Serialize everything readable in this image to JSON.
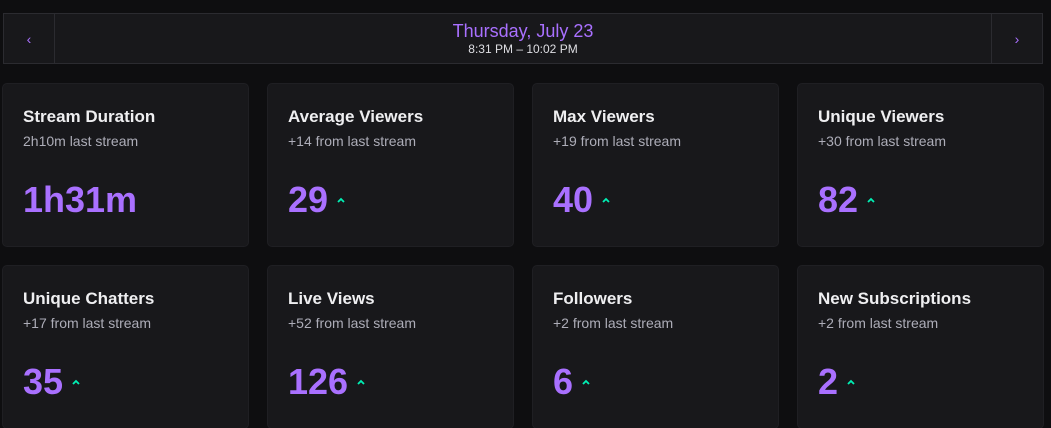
{
  "header": {
    "date": "Thursday, July 23",
    "time_range": "8:31 PM – 10:02 PM",
    "prev_glyph": "‹",
    "next_glyph": "›"
  },
  "colors": {
    "accent": "#a970ff",
    "trend_up": "#00f0b5",
    "background": "#0e0e10",
    "card": "#18181b"
  },
  "stats": [
    {
      "title": "Stream Duration",
      "subtitle": "2h10m last stream",
      "value": "1h31m",
      "trend": "none"
    },
    {
      "title": "Average Viewers",
      "subtitle": "+14 from last stream",
      "value": "29",
      "trend": "up"
    },
    {
      "title": "Max Viewers",
      "subtitle": "+19 from last stream",
      "value": "40",
      "trend": "up"
    },
    {
      "title": "Unique Viewers",
      "subtitle": "+30 from last stream",
      "value": "82",
      "trend": "up"
    },
    {
      "title": "Unique Chatters",
      "subtitle": "+17 from last stream",
      "value": "35",
      "trend": "up"
    },
    {
      "title": "Live Views",
      "subtitle": "+52 from last stream",
      "value": "126",
      "trend": "up"
    },
    {
      "title": "Followers",
      "subtitle": "+2 from last stream",
      "value": "6",
      "trend": "up"
    },
    {
      "title": "New Subscriptions",
      "subtitle": "+2 from last stream",
      "value": "2",
      "trend": "up"
    }
  ]
}
